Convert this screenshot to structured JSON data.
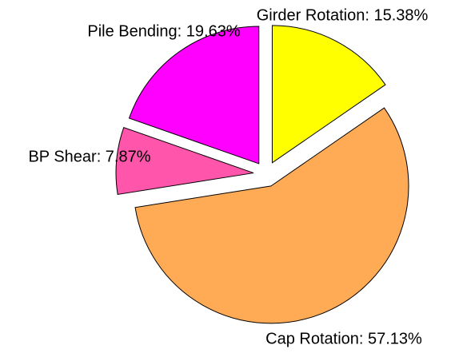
{
  "chart_data": {
    "type": "pie",
    "values": [
      15.38,
      57.13,
      7.87,
      19.63
    ],
    "value_labels": [
      "Girder Rotation: 15.38%",
      "Cap Rotation: 57.13%",
      "BP Shear: 7.87%",
      "Pile Bending: 19.63%"
    ],
    "colors": [
      "#ffff00",
      "#ffaa55",
      "#ff55aa",
      "#ff00ff"
    ]
  }
}
